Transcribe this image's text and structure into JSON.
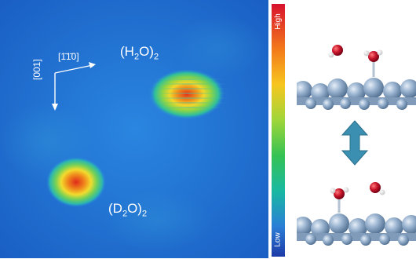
{
  "image": {
    "subject": "stm-image-with-adsorption-models",
    "labels": {
      "h2o": {
        "main": "(H",
        "sub1": "2",
        "mid": "O)",
        "sub2": "2"
      },
      "d2o": {
        "main": "(D",
        "sub1": "2",
        "mid": "O)",
        "sub2": "2"
      },
      "dir_horizontal": "[1̄1̄0]",
      "dir_vertical": "[001]"
    },
    "colorbar": {
      "high": "High",
      "low": "Low"
    },
    "colors": {
      "background": "#1f6fd0",
      "spot_core": "#e5301e",
      "colorbar_top": "#d8122e",
      "colorbar_bottom": "#1e3aa8",
      "surface_atoms": "#8aa6c4",
      "oxygen": "#c8142a",
      "hydrogen": "#ffffff",
      "arrow": "#3b8fb0"
    },
    "icons": [
      "axis-arrow-icon",
      "double-arrow-icon"
    ]
  }
}
